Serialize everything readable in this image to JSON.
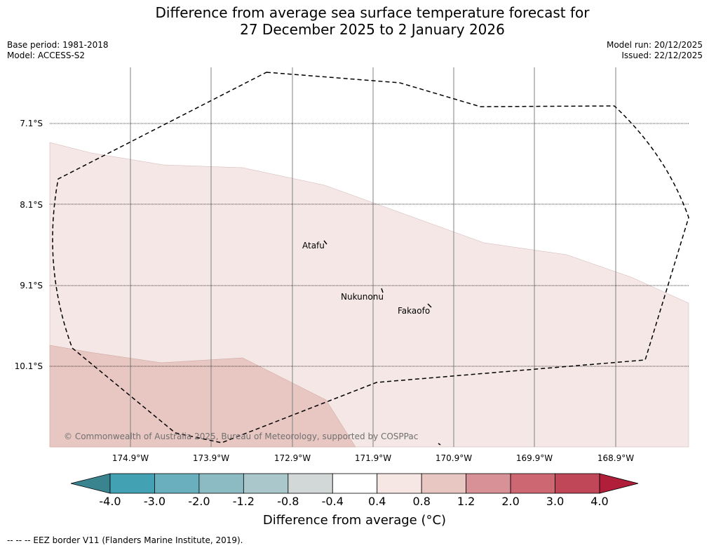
{
  "chart_data": {
    "type": "heatmap",
    "title_line1": "Difference from average sea surface temperature forecast for",
    "title_line2": "27 December 2025 to 2 January 2026",
    "base_period": "Base period: 1981-2018",
    "model": "Model: ACCESS-S2",
    "model_run": "Model run: 20/12/2025",
    "issued": "Issued: 22/12/2025",
    "lat_labels": [
      "7.1°S",
      "8.1°S",
      "9.1°S",
      "10.1°S"
    ],
    "lon_labels": [
      "174.9°W",
      "173.9°W",
      "172.9°W",
      "171.9°W",
      "170.9°W",
      "169.9°W",
      "168.9°W"
    ],
    "places": [
      "Atafu",
      "Nukunonu",
      "Fakaofo"
    ],
    "copyright": "© Commonwealth of Australia 2025, Bureau of Meteorology, supported by COSPPac",
    "colorbar": {
      "ticks": [
        "-4.0",
        "-3.0",
        "-2.0",
        "-1.2",
        "-0.8",
        "-0.4",
        "0.4",
        "0.8",
        "1.2",
        "2.0",
        "3.0",
        "4.0"
      ],
      "colors": [
        "#42a2b4",
        "#6aafbd",
        "#8dbbc3",
        "#aac8cb",
        "#d1d8d7",
        "#ffffff",
        "#f6e7e5",
        "#e8c7c2",
        "#d79197",
        "#cd6772",
        "#c04757"
      ],
      "under_color": "#3a8490",
      "over_color": "#b01e3a",
      "label": "Difference from average (°C)"
    },
    "regions": [
      {
        "name": "warm-0.4-0.8",
        "range": [
          0.4,
          0.8
        ],
        "color": "#f4e7e6"
      },
      {
        "name": "warm-0.8-1.2",
        "range": [
          0.8,
          1.2
        ],
        "color": "#e8c7c2"
      }
    ],
    "legend": "--  --  -- EEZ border V11 (Flanders Marine Institute, 2019)."
  }
}
